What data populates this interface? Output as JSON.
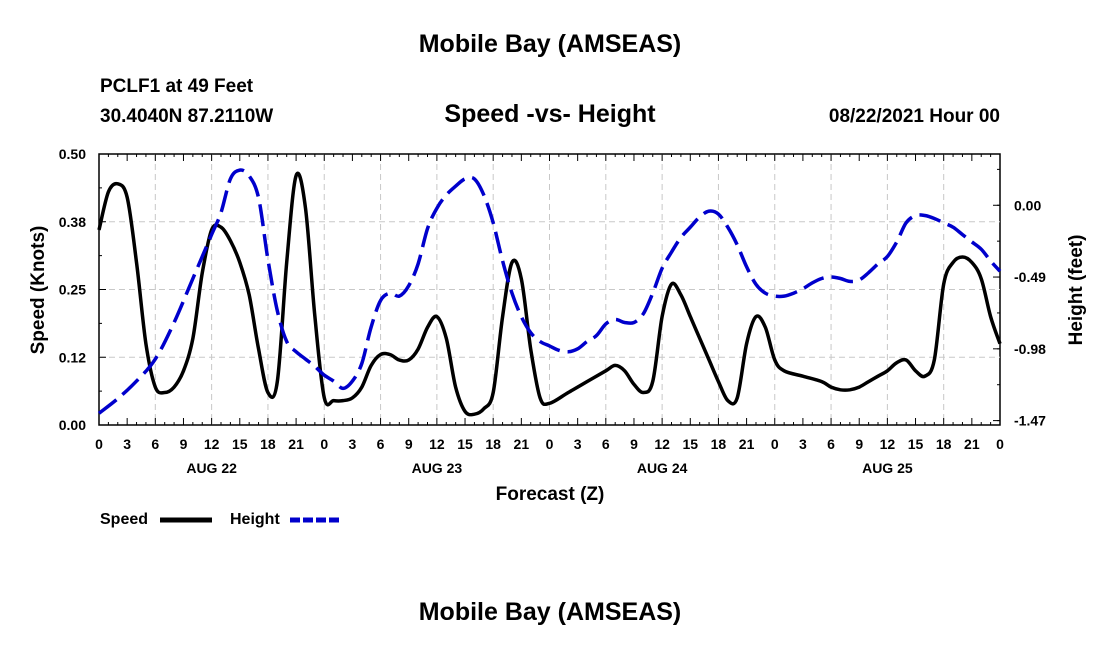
{
  "header": {
    "title": "Mobile Bay (AMSEAS)",
    "station": "PCLF1 at 49 Feet",
    "coords": "30.4040N  87.2110W",
    "subtitle": "Speed -vs- Height",
    "datetime": "08/22/2021 Hour 00"
  },
  "footer": {
    "title": "Mobile Bay (AMSEAS)"
  },
  "chart_data": {
    "type": "line",
    "title": "Speed -vs- Height",
    "xlabel": "Forecast (Z)",
    "ylabel_left": "Speed (Knots)",
    "ylabel_right": "Height (feet)",
    "xlim": [
      0,
      96
    ],
    "ylim_left": [
      0,
      0.5
    ],
    "ylim_right": [
      -1.5,
      0.35
    ],
    "grid": true,
    "x_tick_labels": [
      "0",
      "3",
      "6",
      "9",
      "12",
      "15",
      "18",
      "21",
      "0",
      "3",
      "6",
      "9",
      "12",
      "15",
      "18",
      "21",
      "0",
      "3",
      "6",
      "9",
      "12",
      "15",
      "18",
      "21",
      "0",
      "3",
      "6",
      "9",
      "12",
      "15",
      "18",
      "21",
      "0"
    ],
    "day_labels": [
      "AUG 22",
      "AUG 23",
      "AUG 24",
      "AUG 25"
    ],
    "y_left_ticks": [
      0.0,
      0.125,
      0.25,
      0.375,
      0.5
    ],
    "y_left_tick_labels": [
      "0.00",
      "0.12",
      "0.25",
      "0.38",
      "0.50"
    ],
    "y_right_ticks": [
      0.0,
      -0.49,
      -0.98,
      -1.47
    ],
    "y_right_tick_labels": [
      "0.00",
      "-0.49",
      "-0.98",
      "-1.47"
    ],
    "legend": [
      {
        "label": "Speed",
        "color": "#000000",
        "style": "solid"
      },
      {
        "label": "Height",
        "color": "#0000cc",
        "style": "dashed"
      }
    ],
    "series": [
      {
        "name": "Speed",
        "axis": "left",
        "color": "#000000",
        "style": "solid",
        "points": [
          [
            0,
            0.36
          ],
          [
            1,
            0.43
          ],
          [
            2,
            0.445
          ],
          [
            3,
            0.42
          ],
          [
            4,
            0.3
          ],
          [
            5,
            0.15
          ],
          [
            6,
            0.07
          ],
          [
            7,
            0.06
          ],
          [
            8,
            0.07
          ],
          [
            9,
            0.1
          ],
          [
            10,
            0.16
          ],
          [
            11,
            0.28
          ],
          [
            12,
            0.36
          ],
          [
            13,
            0.365
          ],
          [
            14,
            0.34
          ],
          [
            15,
            0.3
          ],
          [
            16,
            0.24
          ],
          [
            17,
            0.14
          ],
          [
            18,
            0.06
          ],
          [
            19,
            0.08
          ],
          [
            20,
            0.3
          ],
          [
            21,
            0.46
          ],
          [
            22,
            0.4
          ],
          [
            23,
            0.2
          ],
          [
            24,
            0.05
          ],
          [
            25,
            0.045
          ],
          [
            26,
            0.045
          ],
          [
            27,
            0.05
          ],
          [
            28,
            0.07
          ],
          [
            29,
            0.11
          ],
          [
            30,
            0.13
          ],
          [
            31,
            0.13
          ],
          [
            32,
            0.12
          ],
          [
            33,
            0.12
          ],
          [
            34,
            0.14
          ],
          [
            35,
            0.18
          ],
          [
            36,
            0.2
          ],
          [
            37,
            0.16
          ],
          [
            38,
            0.07
          ],
          [
            39,
            0.025
          ],
          [
            40,
            0.02
          ],
          [
            41,
            0.03
          ],
          [
            42,
            0.06
          ],
          [
            43,
            0.2
          ],
          [
            44,
            0.3
          ],
          [
            45,
            0.27
          ],
          [
            46,
            0.14
          ],
          [
            47,
            0.05
          ],
          [
            48,
            0.04
          ],
          [
            50,
            0.06
          ],
          [
            52,
            0.08
          ],
          [
            54,
            0.1
          ],
          [
            55,
            0.11
          ],
          [
            56,
            0.1
          ],
          [
            57,
            0.075
          ],
          [
            58,
            0.06
          ],
          [
            59,
            0.08
          ],
          [
            60,
            0.2
          ],
          [
            61,
            0.26
          ],
          [
            62,
            0.24
          ],
          [
            63,
            0.2
          ],
          [
            64,
            0.16
          ],
          [
            65,
            0.12
          ],
          [
            66,
            0.08
          ],
          [
            67,
            0.045
          ],
          [
            68,
            0.05
          ],
          [
            69,
            0.15
          ],
          [
            70,
            0.2
          ],
          [
            71,
            0.18
          ],
          [
            72,
            0.12
          ],
          [
            73,
            0.1
          ],
          [
            75,
            0.09
          ],
          [
            77,
            0.08
          ],
          [
            78,
            0.07
          ],
          [
            79,
            0.065
          ],
          [
            80,
            0.065
          ],
          [
            81,
            0.07
          ],
          [
            82,
            0.08
          ],
          [
            83,
            0.09
          ],
          [
            84,
            0.1
          ],
          [
            85,
            0.115
          ],
          [
            86,
            0.12
          ],
          [
            87,
            0.1
          ],
          [
            88,
            0.09
          ],
          [
            89,
            0.12
          ],
          [
            90,
            0.26
          ],
          [
            91,
            0.3
          ],
          [
            92,
            0.31
          ],
          [
            93,
            0.3
          ],
          [
            94,
            0.27
          ],
          [
            95,
            0.2
          ],
          [
            96,
            0.15
          ]
        ]
      },
      {
        "name": "Height",
        "axis": "right",
        "color": "#0000cc",
        "style": "dashed",
        "points": [
          [
            0,
            -1.42
          ],
          [
            2,
            -1.32
          ],
          [
            4,
            -1.2
          ],
          [
            6,
            -1.05
          ],
          [
            8,
            -0.8
          ],
          [
            10,
            -0.5
          ],
          [
            12,
            -0.2
          ],
          [
            13,
            -0.05
          ],
          [
            14,
            0.18
          ],
          [
            15,
            0.24
          ],
          [
            16,
            0.2
          ],
          [
            17,
            0.05
          ],
          [
            18,
            -0.37
          ],
          [
            19,
            -0.72
          ],
          [
            20,
            -0.93
          ],
          [
            21,
            -1.0
          ],
          [
            22,
            -1.05
          ],
          [
            23,
            -1.1
          ],
          [
            24,
            -1.16
          ],
          [
            25,
            -1.2
          ],
          [
            26,
            -1.25
          ],
          [
            27,
            -1.2
          ],
          [
            28,
            -1.08
          ],
          [
            29,
            -0.83
          ],
          [
            30,
            -0.65
          ],
          [
            31,
            -0.6
          ],
          [
            32,
            -0.62
          ],
          [
            33,
            -0.55
          ],
          [
            34,
            -0.4
          ],
          [
            35,
            -0.16
          ],
          [
            36,
            -0.02
          ],
          [
            37,
            0.07
          ],
          [
            38,
            0.13
          ],
          [
            39,
            0.18
          ],
          [
            40,
            0.18
          ],
          [
            41,
            0.07
          ],
          [
            42,
            -0.12
          ],
          [
            43,
            -0.38
          ],
          [
            44,
            -0.6
          ],
          [
            45,
            -0.76
          ],
          [
            46,
            -0.87
          ],
          [
            47,
            -0.93
          ],
          [
            48,
            -0.96
          ],
          [
            49,
            -0.99
          ],
          [
            50,
            -1.0
          ],
          [
            51,
            -0.98
          ],
          [
            52,
            -0.93
          ],
          [
            53,
            -0.89
          ],
          [
            54,
            -0.81
          ],
          [
            55,
            -0.78
          ],
          [
            56,
            -0.8
          ],
          [
            57,
            -0.8
          ],
          [
            58,
            -0.74
          ],
          [
            59,
            -0.6
          ],
          [
            60,
            -0.43
          ],
          [
            61,
            -0.32
          ],
          [
            62,
            -0.22
          ],
          [
            63,
            -0.15
          ],
          [
            64,
            -0.08
          ],
          [
            65,
            -0.04
          ],
          [
            66,
            -0.06
          ],
          [
            67,
            -0.15
          ],
          [
            68,
            -0.27
          ],
          [
            69,
            -0.42
          ],
          [
            70,
            -0.54
          ],
          [
            71,
            -0.6
          ],
          [
            72,
            -0.62
          ],
          [
            73,
            -0.62
          ],
          [
            74,
            -0.6
          ],
          [
            75,
            -0.57
          ],
          [
            76,
            -0.53
          ],
          [
            77,
            -0.5
          ],
          [
            78,
            -0.49
          ],
          [
            79,
            -0.5
          ],
          [
            80,
            -0.52
          ],
          [
            81,
            -0.51
          ],
          [
            82,
            -0.46
          ],
          [
            83,
            -0.4
          ],
          [
            84,
            -0.35
          ],
          [
            85,
            -0.25
          ],
          [
            86,
            -0.12
          ],
          [
            87,
            -0.07
          ],
          [
            88,
            -0.07
          ],
          [
            89,
            -0.09
          ],
          [
            90,
            -0.12
          ],
          [
            91,
            -0.15
          ],
          [
            92,
            -0.2
          ],
          [
            93,
            -0.25
          ],
          [
            94,
            -0.3
          ],
          [
            95,
            -0.38
          ],
          [
            96,
            -0.45
          ]
        ]
      }
    ]
  }
}
